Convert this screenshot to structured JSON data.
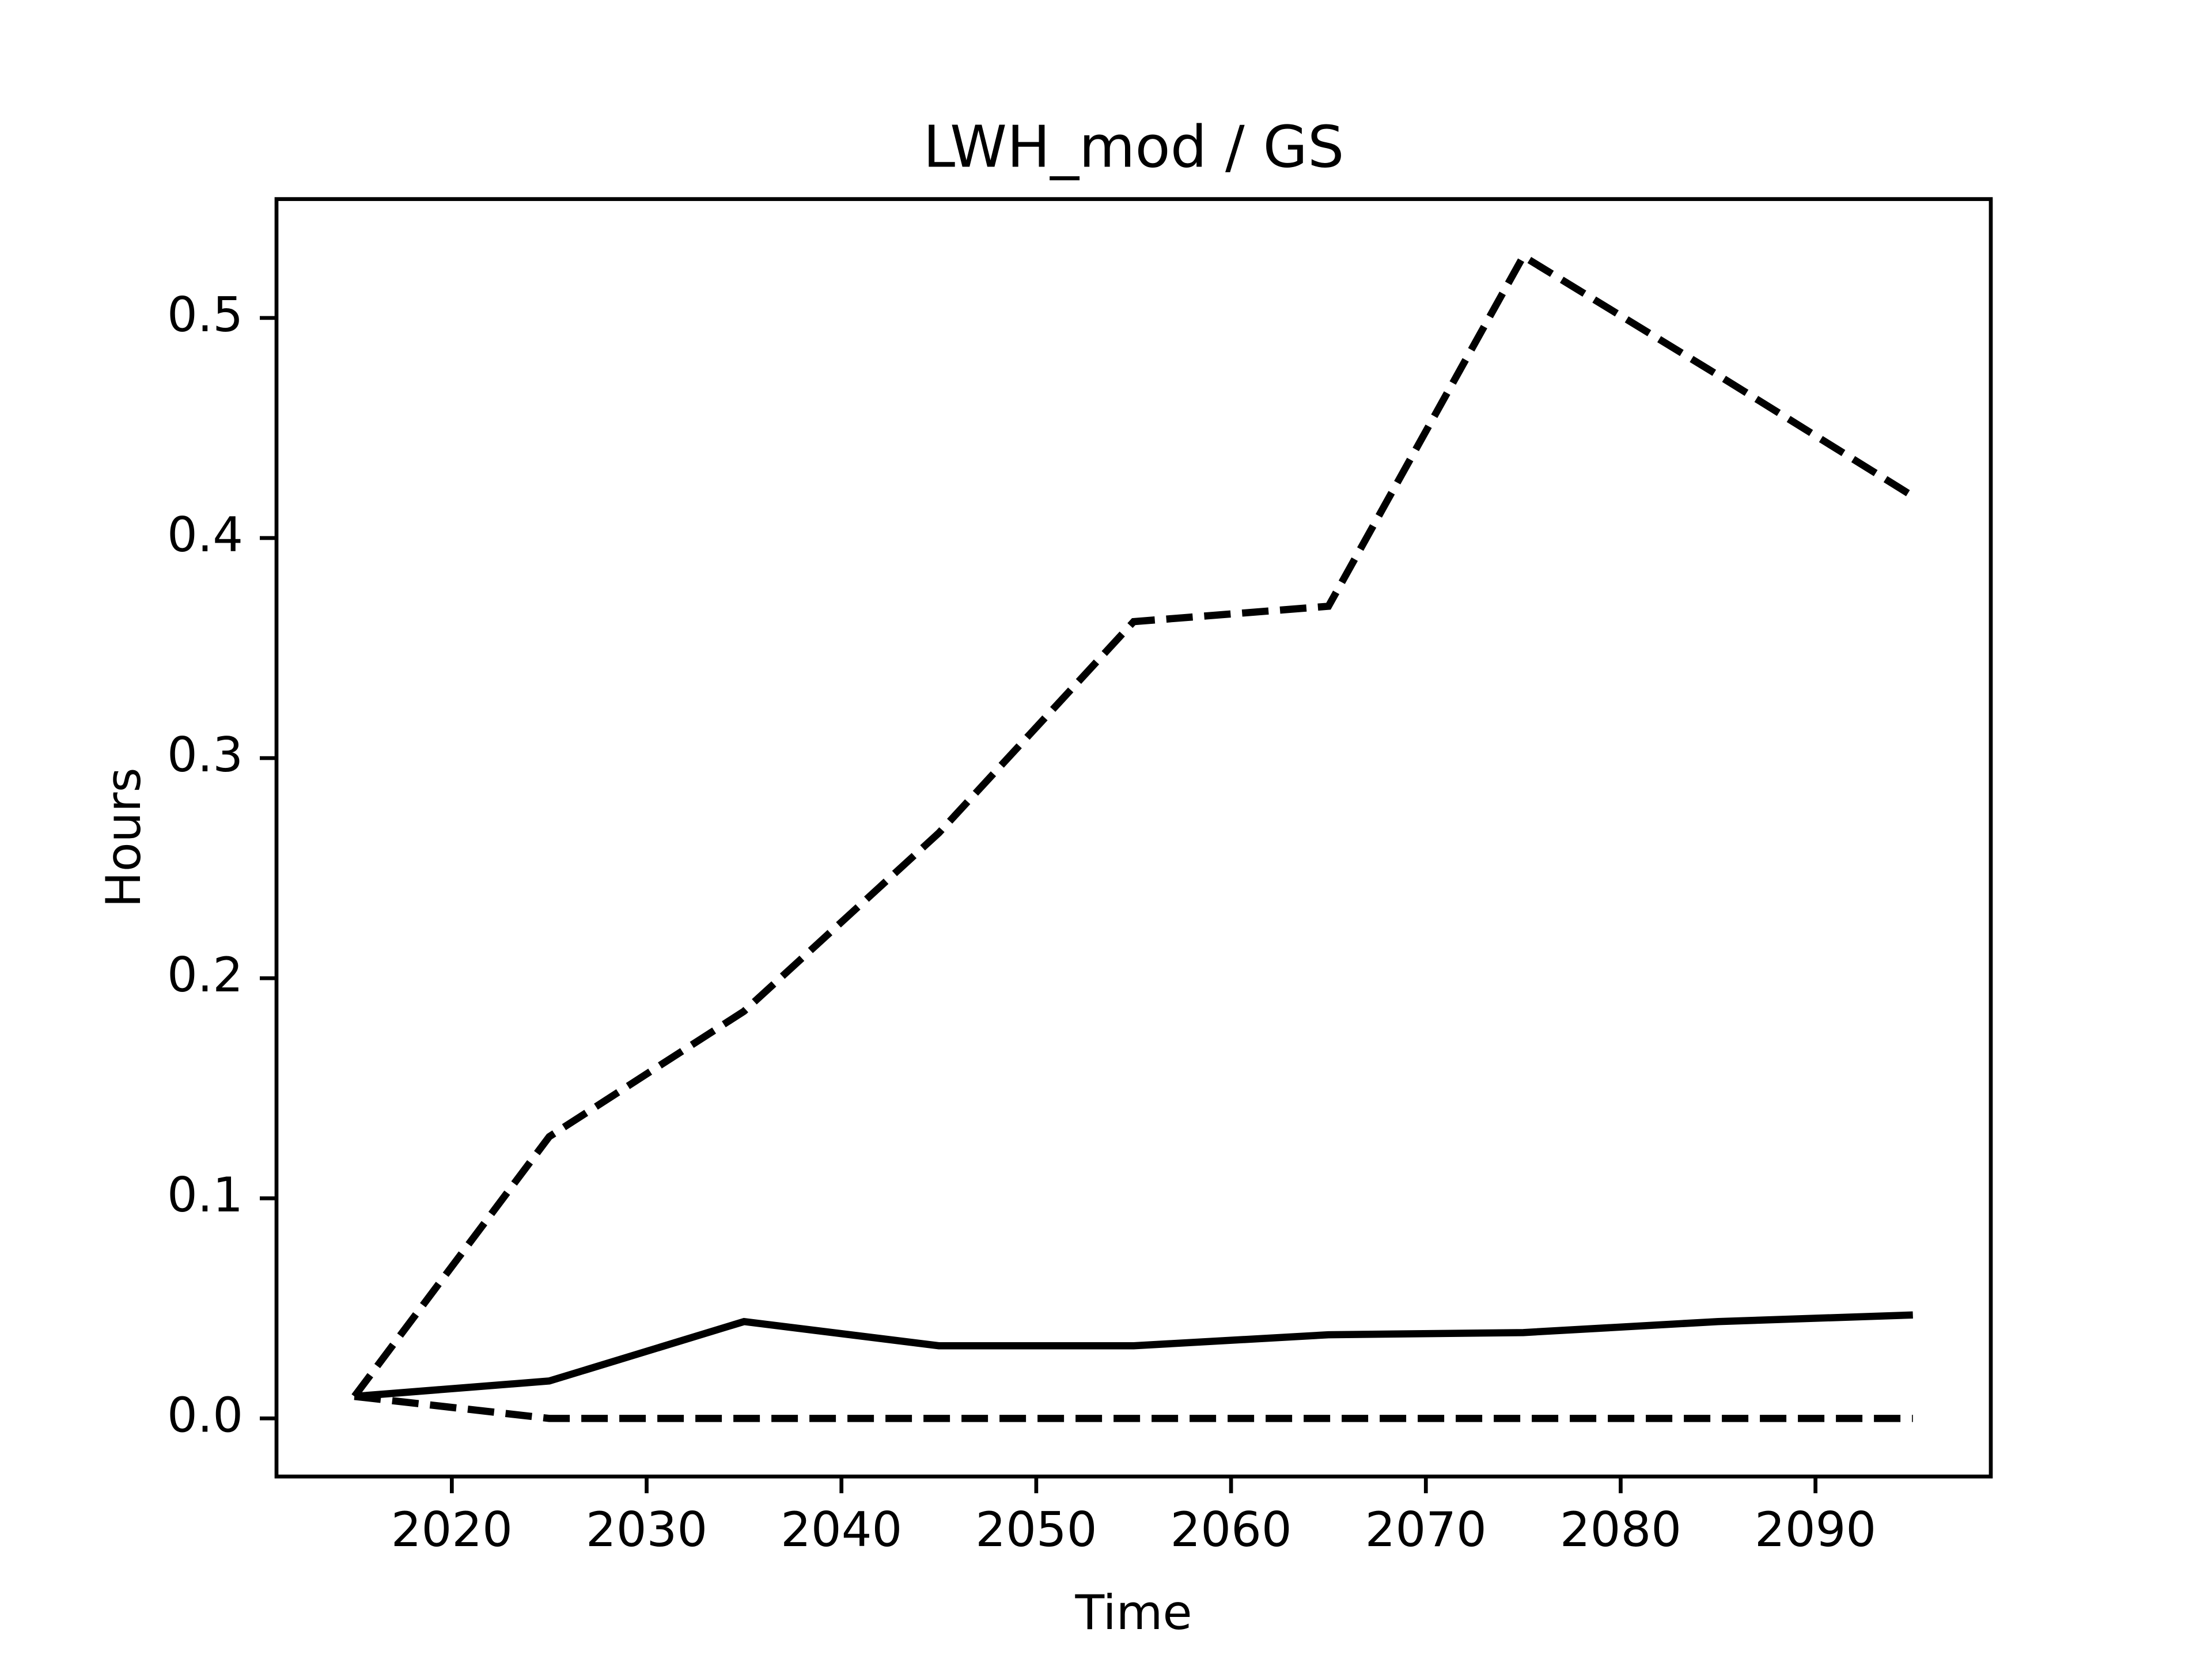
{
  "chart_data": {
    "type": "line",
    "title": "LWH_mod / GS",
    "xlabel": "Time",
    "ylabel": "Hours",
    "x": [
      2015,
      2025,
      2035,
      2045,
      2055,
      2065,
      2075,
      2085,
      2095
    ],
    "series": [
      {
        "color": "#000000",
        "linestyle": "solid",
        "values": [
          0.01,
          0.017,
          0.044,
          0.033,
          0.033,
          0.038,
          0.039,
          0.044,
          0.047
        ]
      },
      {
        "color": "#000000",
        "linestyle": "dashed",
        "values": [
          0.01,
          0.128,
          0.185,
          0.266,
          0.362,
          0.369,
          0.528,
          0.474,
          0.419
        ]
      },
      {
        "color": "#000000",
        "linestyle": "dashed",
        "values": [
          0.01,
          0,
          0,
          0,
          0,
          0,
          0,
          0,
          0
        ]
      }
    ],
    "xlim": [
      2011,
      2099
    ],
    "xticks": [
      2020,
      2030,
      2040,
      2050,
      2060,
      2070,
      2080,
      2090
    ],
    "ylim": [
      -0.0264,
      0.554
    ],
    "yticks": [
      {
        "value": 0,
        "label": "0.0"
      },
      0.1,
      0.2,
      0.3,
      0.4,
      0.5
    ],
    "grid": false
  }
}
